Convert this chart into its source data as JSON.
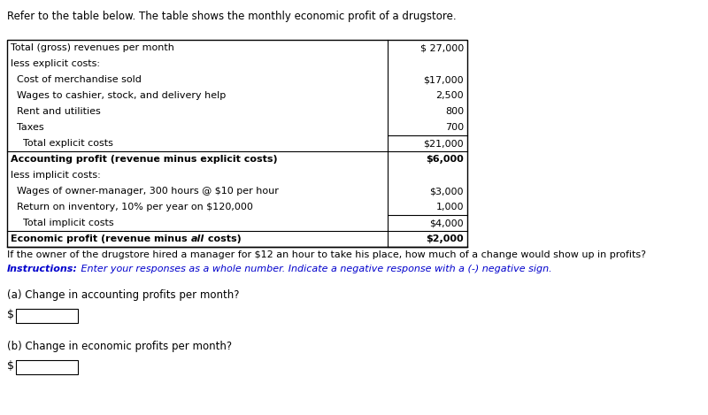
{
  "title": "Refer to the table below. The table shows the monthly economic profit of a drugstore.",
  "table_rows": [
    {
      "label": "Total (gross) revenues per month",
      "value": "$ 27,000",
      "bold": false,
      "border_top": false,
      "border_bottom": false,
      "value_border_top": false,
      "value_border_bottom": false
    },
    {
      "label": "less explicit costs:",
      "value": "",
      "bold": false,
      "border_top": false,
      "border_bottom": false,
      "value_border_top": false,
      "value_border_bottom": false
    },
    {
      "label": "  Cost of merchandise sold",
      "value": "$17,000",
      "bold": false,
      "border_top": false,
      "border_bottom": false,
      "value_border_top": false,
      "value_border_bottom": false
    },
    {
      "label": "  Wages to cashier, stock, and delivery help",
      "value": "2,500",
      "bold": false,
      "border_top": false,
      "border_bottom": false,
      "value_border_top": false,
      "value_border_bottom": false
    },
    {
      "label": "  Rent and utilities",
      "value": "800",
      "bold": false,
      "border_top": false,
      "border_bottom": false,
      "value_border_top": false,
      "value_border_bottom": false
    },
    {
      "label": "  Taxes",
      "value": "700",
      "bold": false,
      "border_top": false,
      "border_bottom": false,
      "value_border_top": false,
      "value_border_bottom": true
    },
    {
      "label": "    Total explicit costs",
      "value": "$21,000",
      "bold": false,
      "border_top": false,
      "border_bottom": false,
      "value_border_top": false,
      "value_border_bottom": false
    },
    {
      "label": "Accounting profit (revenue minus explicit costs)",
      "value": "$6,000",
      "bold": true,
      "border_top": true,
      "border_bottom": false,
      "value_border_top": true,
      "value_border_bottom": false
    },
    {
      "label": "less implicit costs:",
      "value": "",
      "bold": false,
      "border_top": false,
      "border_bottom": false,
      "value_border_top": false,
      "value_border_bottom": false
    },
    {
      "label": "  Wages of owner-manager, 300 hours @ $10 per hour",
      "value": "$3,000",
      "bold": false,
      "border_top": false,
      "border_bottom": false,
      "value_border_top": false,
      "value_border_bottom": false
    },
    {
      "label": "  Return on inventory, 10% per year on $120,000",
      "value": "1,000",
      "bold": false,
      "border_top": false,
      "border_bottom": false,
      "value_border_top": false,
      "value_border_bottom": true
    },
    {
      "label": "    Total implicit costs",
      "value": "$4,000",
      "bold": false,
      "border_top": false,
      "border_bottom": false,
      "value_border_top": false,
      "value_border_bottom": false
    },
    {
      "label": "Economic profit (revenue minus all costs)",
      "value": "$2,000",
      "bold": true,
      "border_top": true,
      "border_bottom": true,
      "value_border_top": true,
      "value_border_bottom": true
    }
  ],
  "question_text": "If the owner of the drugstore hired a manager for $12 an hour to take his place, how much of a change would show up in profits?",
  "instructions_label": "Instructions:",
  "instructions_text": " Enter your responses as a whole number. Indicate a negative response with a (-) negative sign.",
  "part_a_label": "(a) Change in accounting profits per month?",
  "part_b_label": "(b) Change in economic profits per month?",
  "blue_color": "#0000CC",
  "black_color": "#000000",
  "bg_color": "#ffffff"
}
